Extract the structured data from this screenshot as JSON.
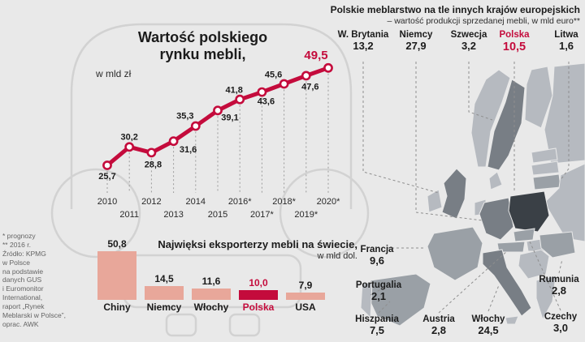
{
  "colors": {
    "background": "#e9e9e9",
    "accent_red": "#c40b3c",
    "bar_salmon": "#e8a79a",
    "map_light": "#b6bac0",
    "map_medium": "#9aa0a6",
    "map_dark": "#787e85",
    "map_poland": "#3a4046"
  },
  "chart_data": [
    {
      "type": "line",
      "title": "Wartość polskiego rynku mebli,",
      "title_line1": "Wartość polskiego",
      "title_line2": "rynku mebli,",
      "unit": "w mld zł",
      "x": [
        "2010",
        "2011",
        "2012",
        "2013",
        "2014",
        "2015",
        "2016*",
        "2017*",
        "2018*",
        "2019*",
        "2020*"
      ],
      "values": [
        25.7,
        30.2,
        28.8,
        31.6,
        35.3,
        39.1,
        41.8,
        43.6,
        45.6,
        47.6,
        49.5
      ],
      "value_labels": [
        "25,7",
        "30,2",
        "28,8",
        "31,6",
        "35,3",
        "39,1",
        "41,8",
        "43,6",
        "45,6",
        "47,6",
        "49,5"
      ],
      "ylim": [
        25,
        50
      ],
      "grid": false,
      "highlight_last": true
    },
    {
      "type": "map",
      "title": "Polskie meblarstwo na tle innych krajów europejskich",
      "subtitle": "– wartość produkcji sprzedanej mebli, w mld euro**",
      "countries": [
        {
          "name": "W. Brytania",
          "value": "13,2",
          "value_num": 13.2,
          "highlight": false
        },
        {
          "name": "Niemcy",
          "value": "27,9",
          "value_num": 27.9,
          "highlight": false
        },
        {
          "name": "Szwecja",
          "value": "3,2",
          "value_num": 3.2,
          "highlight": false
        },
        {
          "name": "Polska",
          "value": "10,5",
          "value_num": 10.5,
          "highlight": true
        },
        {
          "name": "Litwa",
          "value": "1,6",
          "value_num": 1.6,
          "highlight": false
        },
        {
          "name": "Francja",
          "value": "9,6",
          "value_num": 9.6,
          "highlight": false
        },
        {
          "name": "Portugalia",
          "value": "2,1",
          "value_num": 2.1,
          "highlight": false
        },
        {
          "name": "Hiszpania",
          "value": "7,5",
          "value_num": 7.5,
          "highlight": false
        },
        {
          "name": "Austria",
          "value": "2,8",
          "value_num": 2.8,
          "highlight": false
        },
        {
          "name": "Włochy",
          "value": "24,5",
          "value_num": 24.5,
          "highlight": false
        },
        {
          "name": "Rumunia",
          "value": "2,8",
          "value_num": 2.8,
          "highlight": false
        },
        {
          "name": "Czechy",
          "value": "3,0",
          "value_num": 3.0,
          "highlight": false
        }
      ]
    },
    {
      "type": "bar",
      "title": "Najwięksi eksporterzy mebli na świecie,",
      "unit": "w mld dol.",
      "categories": [
        "Chiny",
        "Niemcy",
        "Włochy",
        "Polska",
        "USA"
      ],
      "values": [
        50.8,
        14.5,
        11.6,
        10.0,
        7.9
      ],
      "value_labels": [
        "50,8",
        "14,5",
        "11,6",
        "10,0",
        "7,9"
      ],
      "highlight_index": 3
    }
  ],
  "footnotes": {
    "text": "* prognozy\n** 2016 r.\nŹródło: KPMG\nw Polsce\nna podstawie\ndanych GUS\ni Euromonitor\nInternational,\nraport „Rynek\nMeblarski w Polsce”,\noprac. AWK"
  }
}
